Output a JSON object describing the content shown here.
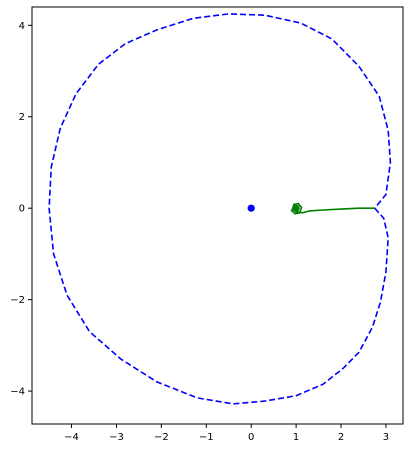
{
  "chart_data": {
    "type": "line",
    "title": "",
    "xlabel": "",
    "ylabel": "",
    "xlim": [
      -4.88,
      3.38
    ],
    "ylim": [
      -4.72,
      4.4
    ],
    "grid": false,
    "x_ticks": [
      -4,
      -3,
      -2,
      -1,
      0,
      1,
      2,
      3
    ],
    "y_ticks": [
      -4,
      -2,
      0,
      2,
      4
    ],
    "x_tick_labels": [
      "−4",
      "−3",
      "−2",
      "−1",
      "0",
      "1",
      "2",
      "3"
    ],
    "y_tick_labels": [
      "−4",
      "−2",
      "0",
      "2",
      "4"
    ],
    "series": [
      {
        "kind": "dashed-line",
        "color": "#0000ff",
        "points": [
          [
            2.75,
            0.0
          ],
          [
            2.95,
            -0.22
          ],
          [
            3.05,
            -0.65
          ],
          [
            3.0,
            -1.4
          ],
          [
            2.88,
            -2.05
          ],
          [
            2.7,
            -2.6
          ],
          [
            2.4,
            -3.15
          ],
          [
            2.05,
            -3.5
          ],
          [
            1.6,
            -3.85
          ],
          [
            1.0,
            -4.1
          ],
          [
            0.3,
            -4.22
          ],
          [
            -0.4,
            -4.28
          ],
          [
            -1.2,
            -4.15
          ],
          [
            -2.1,
            -3.8
          ],
          [
            -2.9,
            -3.3
          ],
          [
            -3.6,
            -2.7
          ],
          [
            -4.1,
            -1.9
          ],
          [
            -4.4,
            -1.0
          ],
          [
            -4.5,
            0.0
          ],
          [
            -4.45,
            0.9
          ],
          [
            -4.25,
            1.75
          ],
          [
            -3.9,
            2.5
          ],
          [
            -3.4,
            3.15
          ],
          [
            -2.8,
            3.6
          ],
          [
            -2.1,
            3.9
          ],
          [
            -1.3,
            4.15
          ],
          [
            -0.5,
            4.25
          ],
          [
            0.3,
            4.22
          ],
          [
            1.1,
            4.05
          ],
          [
            1.8,
            3.7
          ],
          [
            2.4,
            3.1
          ],
          [
            2.85,
            2.45
          ],
          [
            3.05,
            1.7
          ],
          [
            3.1,
            1.0
          ],
          [
            3.0,
            0.3
          ],
          [
            2.75,
            0.0
          ]
        ]
      },
      {
        "kind": "solid-line",
        "color": "#007f00",
        "points": [
          [
            2.75,
            0.0
          ],
          [
            2.7,
            0.0
          ],
          [
            2.4,
            0.0
          ],
          [
            2.0,
            -0.02
          ],
          [
            1.6,
            -0.04
          ],
          [
            1.3,
            -0.06
          ],
          [
            1.15,
            -0.1
          ],
          [
            1.0,
            -0.08
          ],
          [
            0.92,
            -0.02
          ],
          [
            0.95,
            0.08
          ],
          [
            1.05,
            0.1
          ],
          [
            1.12,
            0.02
          ],
          [
            1.08,
            -0.1
          ],
          [
            0.98,
            -0.12
          ],
          [
            0.9,
            -0.05
          ],
          [
            0.95,
            0.03
          ],
          [
            1.02,
            0.0
          ]
        ]
      }
    ],
    "markers": [
      {
        "x": 0.0,
        "y": 0.0,
        "color": "#0000ff"
      },
      {
        "x": 1.0,
        "y": 0.0,
        "color": "#007f00"
      }
    ]
  }
}
